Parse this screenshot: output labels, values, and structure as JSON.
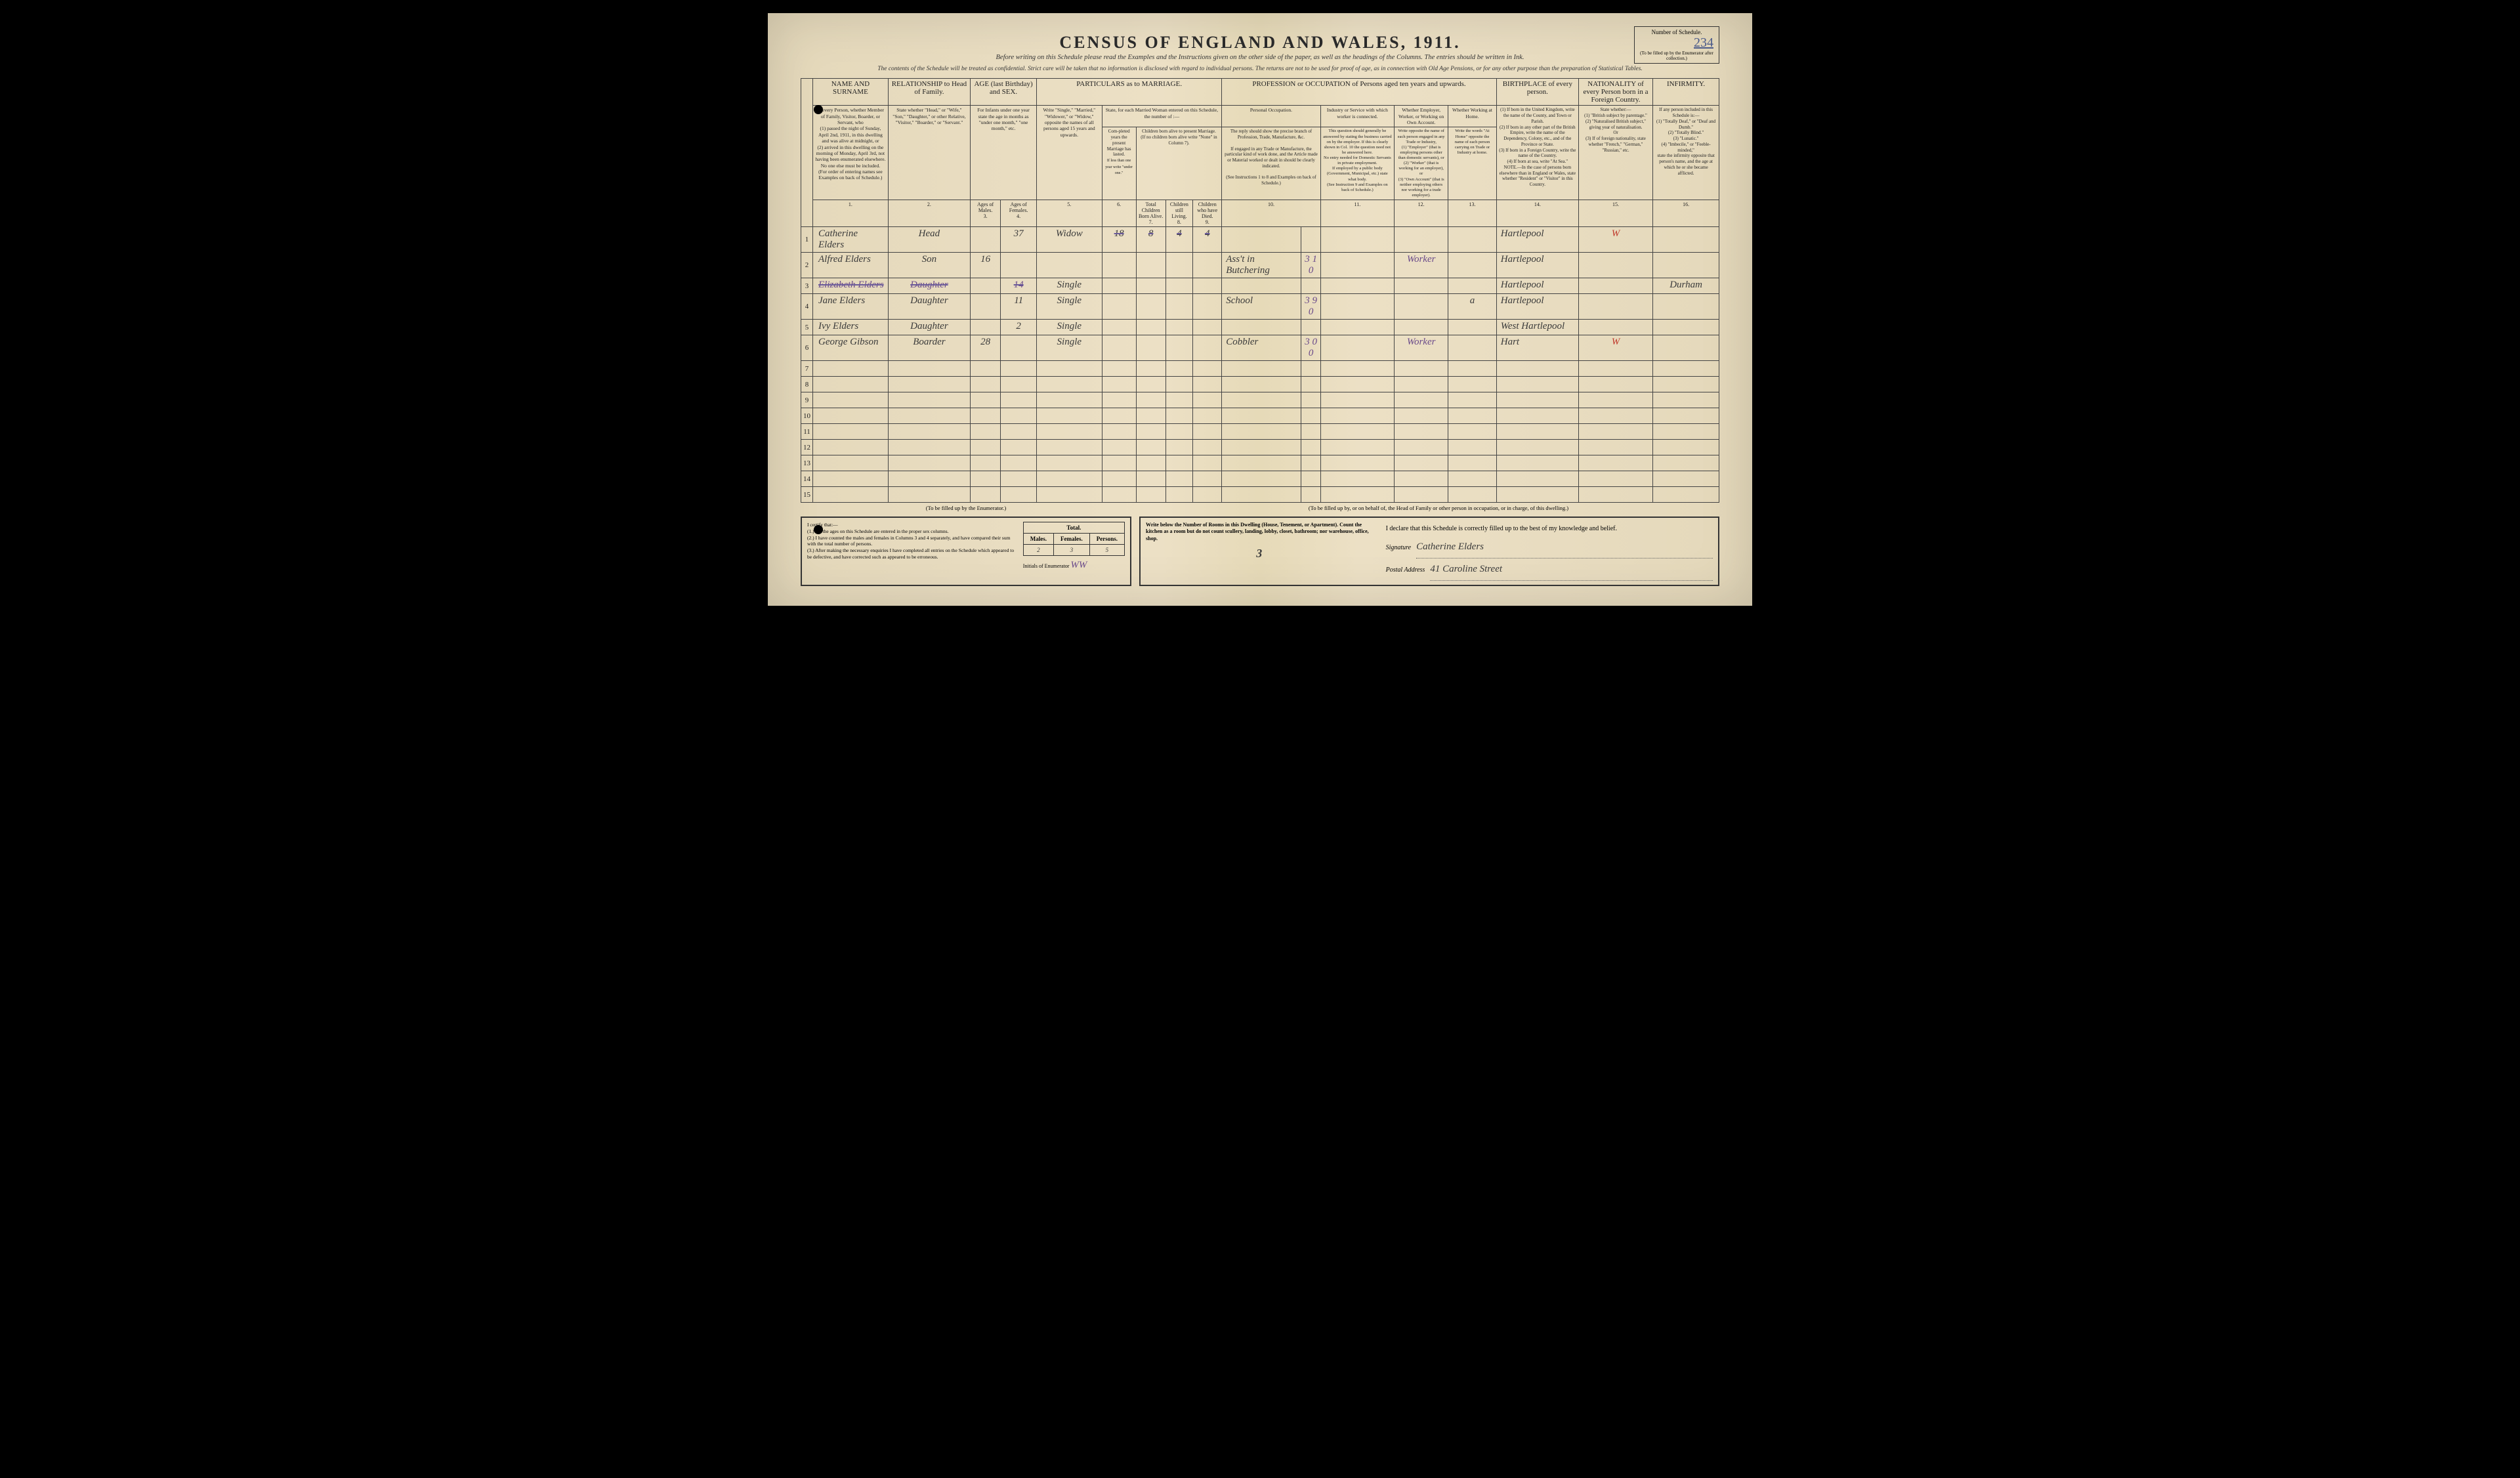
{
  "title": "CENSUS OF ENGLAND AND WALES, 1911.",
  "subtitle": "Before writing on this Schedule please read the Examples and the Instructions given on the other side of the paper, as well as the headings of the Columns. The entries should be written in Ink.",
  "schedule": {
    "label": "Number of Schedule.",
    "sub": "(To be filled up by the Enumerator after collection.)",
    "number": "234"
  },
  "confidential": "The contents of the Schedule will be treated as confidential. Strict care will be taken that no information is disclosed with regard to individual persons. The returns are not to be used for proof of age, as in connection with Old Age Pensions, or for any other purpose than the preparation of Statistical Tables.",
  "columns": {
    "c1": {
      "header": "NAME AND SURNAME",
      "inst": "of every Person, whether Member of Family, Visitor, Boarder, or Servant, who\n(1) passed the night of Sunday, April 2nd, 1911, in this dwelling and was alive at midnight, or\n(2) arrived in this dwelling on the morning of Monday, April 3rd, not having been enumerated elsewhere.\nNo one else must be included.\n(For order of entering names see Examples on back of Schedule.)",
      "num": "1."
    },
    "c2": {
      "header": "RELATIONSHIP to Head of Family.",
      "inst": "State whether \"Head,\" or \"Wife,\" \"Son,\" \"Daughter,\" or other Relative, \"Visitor,\" \"Boarder,\" or \"Servant.\"",
      "num": "2."
    },
    "c3": {
      "header": "AGE (last Birthday) and SEX.",
      "inst": "For Infants under one year state the age in months as \"under one month,\" \"one month,\" etc.",
      "m": "Ages of Males.",
      "f": "Ages of Females.",
      "num_m": "3.",
      "num_f": "4."
    },
    "c5": {
      "header": "PARTICULARS as to MARRIAGE.",
      "inst": "Write \"Single,\" \"Married,\" \"Widower,\" or \"Widow,\" opposite the names of all persons aged 15 years and upwards.",
      "num": "5.",
      "dur_h": "State, for each Married Woman entered on this Schedule, the number of :—",
      "dur": "Com-pleted years the present Marriage has lasted.",
      "dur_sub": "If less than one year write \"under one.\"",
      "num6": "6.",
      "child_h": "Children born alive to present Marriage.",
      "child_sub": "(If no children born alive write \"None\" in Column 7).",
      "tot": "Total Children Born Alive.",
      "num7": "7.",
      "liv": "Children still Living.",
      "num8": "8.",
      "died": "Children who have Died.",
      "num9": "9."
    },
    "c10": {
      "header": "PROFESSION or OCCUPATION of Persons aged ten years and upwards.",
      "personal": "Personal Occupation.",
      "personal_inst": "The reply should show the precise branch of Profession, Trade, Manufacture, &c.\n\nIf engaged in any Trade or Manufacture, the particular kind of work done, and the Article made or Material worked or dealt in should be clearly indicated.\n\n(See Instructions 1 to 8 and Examples on back of Schedule.)",
      "num10": "10.",
      "industry": "Industry or Service with which worker is connected.",
      "industry_inst": "This question should generally be answered by stating the business carried on by the employer. If this is clearly shown in Col. 10 the question need not be answered here.\nNo entry needed for Domestic Servants in private employment.\nIf employed by a public body (Government, Municipal, etc.) state what body.\n(See Instruction 9 and Examples on back of Schedule.)",
      "num11": "11.",
      "status": "Whether Employer, Worker, or Working on Own Account.",
      "status_inst": "Write opposite the name of each person engaged in any Trade or Industry,\n(1) \"Employer\" (that is employing persons other than domestic servants), or\n(2) \"Worker\" (that is working for an employer), or\n(3) \"Own Account\" (that is neither employing others nor working for a trade employer).",
      "num12": "12.",
      "home": "Whether Working at Home.",
      "home_inst": "Write the words \"At Home\" opposite the name of each person carrying on Trade or Industry at home.",
      "num13": "13."
    },
    "c14": {
      "header": "BIRTHPLACE of every person.",
      "inst": "(1) If born in the United Kingdom, write the name of the County, and Town or Parish.\n(2) If born in any other part of the British Empire, write the name of the Dependency, Colony, etc., and of the Province or State.\n(3) If born in a Foreign Country, write the name of the Country.\n(4) If born at sea, write \"At Sea.\"\nNOTE.—In the case of persons born elsewhere than in England or Wales, state whether \"Resident\" or \"Visitor\" in this Country.",
      "num": "14."
    },
    "c15": {
      "header": "NATIONALITY of every Person born in a Foreign Country.",
      "inst": "State whether:—\n(1) \"British subject by parentage.\"\n(2) \"Naturalised British subject,\" giving year of naturalisation.\nOr\n(3) If of foreign nationality, state whether \"French,\" \"German,\" \"Russian,\" etc.",
      "num": "15."
    },
    "c16": {
      "header": "INFIRMITY.",
      "inst": "If any person included in this Schedule is:—\n(1) \"Totally Deaf,\" or \"Deaf and Dumb.\"\n(2) \"Totally Blind.\"\n(3) \"Lunatic.\"\n(4) \"Imbecile,\" or \"Feeble-minded,\"\nstate the infirmity opposite that person's name, and the age at which he or she became afflicted.",
      "num": "16."
    }
  },
  "rows": [
    {
      "n": "1",
      "name": "Catherine Elders",
      "rel": "Head",
      "age_m": "",
      "age_f": "37",
      "mar": "Widow",
      "dur": "18",
      "tot": "8",
      "liv": "4",
      "died": "4",
      "occ": "",
      "code": "",
      "ind": "",
      "stat": "",
      "home": "",
      "birth": "Hartlepool",
      "nat": "W",
      "inf": "",
      "struck_nums": true
    },
    {
      "n": "2",
      "name": "Alfred Elders",
      "rel": "Son",
      "age_m": "16",
      "age_f": "",
      "mar": "",
      "dur": "",
      "tot": "",
      "liv": "",
      "died": "",
      "occ": "Ass't in Butchering",
      "code": "3 1 0",
      "ind": "",
      "stat": "Worker",
      "home": "",
      "birth": "Hartlepool",
      "nat": "",
      "inf": ""
    },
    {
      "n": "3",
      "name": "Elizabeth Elders",
      "rel": "Daughter",
      "age_m": "",
      "age_f": "14",
      "mar": "Single",
      "dur": "",
      "tot": "",
      "liv": "",
      "died": "",
      "occ": "",
      "code": "",
      "ind": "",
      "stat": "",
      "home": "",
      "birth": "Hartlepool",
      "nat": "",
      "inf": "Durham",
      "struck": true
    },
    {
      "n": "4",
      "name": "Jane Elders",
      "rel": "Daughter",
      "age_m": "",
      "age_f": "11",
      "mar": "Single",
      "dur": "",
      "tot": "",
      "liv": "",
      "died": "",
      "occ": "School",
      "code": "3 9 0",
      "ind": "",
      "stat": "",
      "home": "a",
      "birth": "Hartlepool",
      "nat": "",
      "inf": ""
    },
    {
      "n": "5",
      "name": "Ivy Elders",
      "rel": "Daughter",
      "age_m": "",
      "age_f": "2",
      "mar": "Single",
      "dur": "",
      "tot": "",
      "liv": "",
      "died": "",
      "occ": "",
      "code": "",
      "ind": "",
      "stat": "",
      "home": "",
      "birth": "West Hartlepool",
      "nat": "",
      "inf": ""
    },
    {
      "n": "6",
      "name": "George Gibson",
      "rel": "Boarder",
      "age_m": "28",
      "age_f": "",
      "mar": "Single",
      "dur": "",
      "tot": "",
      "liv": "",
      "died": "",
      "occ": "Cobbler",
      "code": "3 0 0",
      "ind": "",
      "stat": "Worker",
      "home": "",
      "birth": "Hart",
      "nat": "W",
      "inf": ""
    },
    {
      "n": "7"
    },
    {
      "n": "8"
    },
    {
      "n": "9"
    },
    {
      "n": "10"
    },
    {
      "n": "11"
    },
    {
      "n": "12"
    },
    {
      "n": "13"
    },
    {
      "n": "14"
    },
    {
      "n": "15"
    }
  ],
  "footer": {
    "enum_caption": "(To be filled up by the Enumerator.)",
    "enum_text": "I certify that:—\n(1.) All the ages on this Schedule are entered in the proper sex columns.\n(2.) I have counted the males and females in Columns 3 and 4 separately, and have compared their sum with the total number of persons.\n(3.) After making the necessary enquiries I have completed all entries on the Schedule which appeared to be defective, and have corrected such as appeared to be erroneous.",
    "enum_initials_label": "Initials of Enumerator",
    "enum_initials": "WW",
    "totals": {
      "h_total": "Total.",
      "h_m": "Males.",
      "h_f": "Females.",
      "h_p": "Persons.",
      "m": "2",
      "f": "3",
      "p": "5"
    },
    "head_caption": "(To be filled up by, or on behalf of, the Head of Family or other person in occupation, or in charge, of this dwelling.)",
    "rooms_text": "Write below the Number of Rooms in this Dwelling (House, Tenement, or Apartment). Count the kitchen as a room but do not count scullery, landing, lobby, closet, bathroom; nor warehouse, office, shop.",
    "rooms_value": "3",
    "declaration": "I declare that this Schedule is correctly filled up to the best of my knowledge and belief.",
    "sig_label": "Signature",
    "signature": "Catherine Elders",
    "addr_label": "Postal Address",
    "address": "41 Caroline Street"
  }
}
